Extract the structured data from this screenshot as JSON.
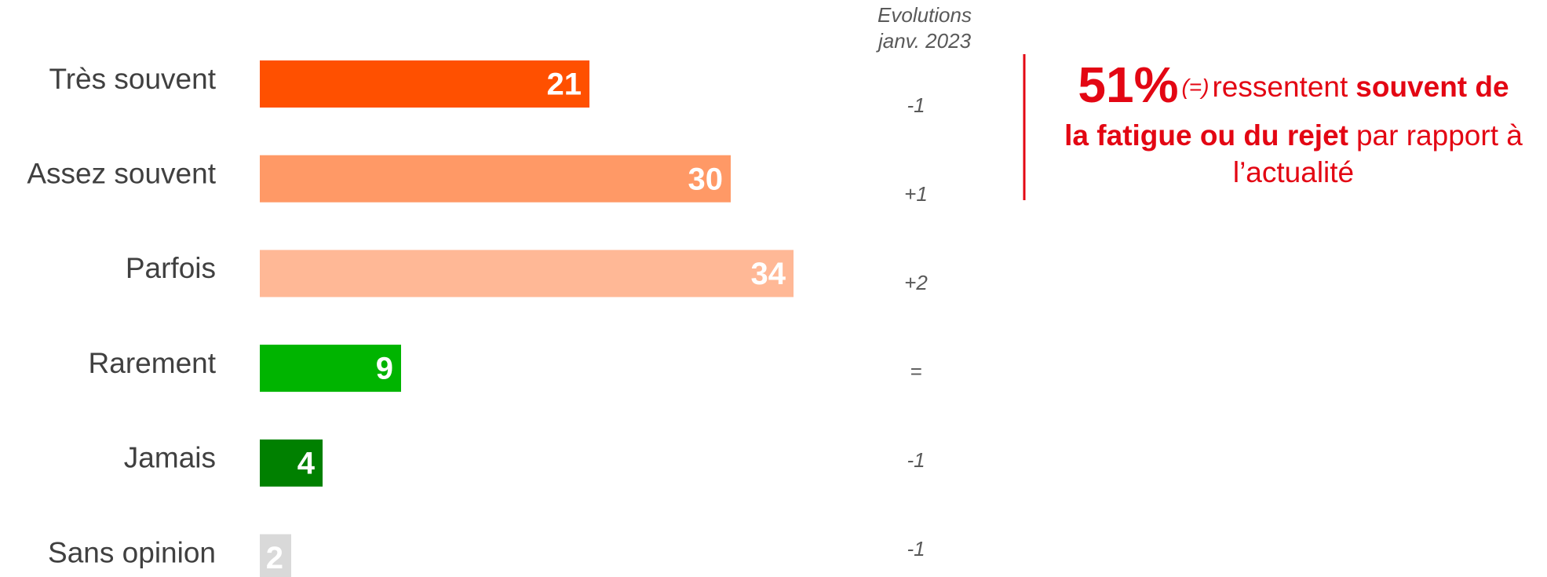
{
  "chart_data": {
    "type": "bar",
    "categories": [
      "Très souvent",
      "Assez souvent",
      "Parfois",
      "Rarement",
      "Jamais",
      "Sans opinion"
    ],
    "values": [
      21,
      30,
      34,
      9,
      4,
      2
    ],
    "colors": [
      "#ff5000",
      "#ff9966",
      "#ffb896",
      "#00b400",
      "#008000",
      "#d9d9d9"
    ],
    "evolutions_title": [
      "Evolutions",
      "janv. 2023"
    ],
    "evolutions": [
      "-1",
      "+1",
      "+2",
      "=",
      "-1",
      "-1"
    ],
    "annotation": {
      "highlight": "51%",
      "change": "(=)",
      "text1": "ressentent",
      "bold1": "souvent de",
      "bold2": "la fatigue ou du rejet",
      "text2": "par rapport à",
      "text3": "l’actualité"
    }
  }
}
